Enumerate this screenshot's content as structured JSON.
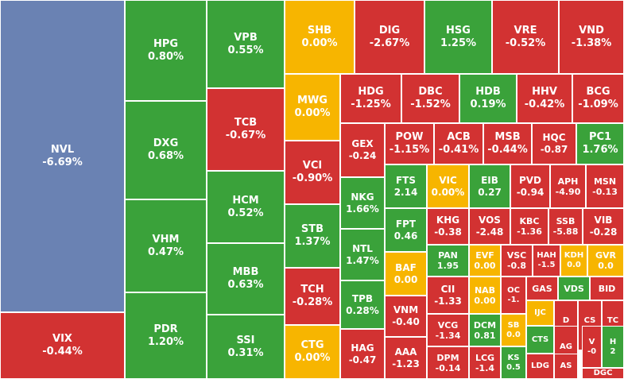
{
  "colors": {
    "up": "#3aa23a",
    "down": "#d23232",
    "unchanged": "#f7b500",
    "deep_down": "#6a82b3"
  },
  "tiles": [
    {
      "ticker": "NVL",
      "change": "-6.69%",
      "status": "deep_down"
    },
    {
      "ticker": "VIX",
      "change": "-0.44%",
      "status": "down"
    },
    {
      "ticker": "HPG",
      "change": "0.80%",
      "status": "up"
    },
    {
      "ticker": "DXG",
      "change": "0.68%",
      "status": "up"
    },
    {
      "ticker": "VHM",
      "change": "0.47%",
      "status": "up"
    },
    {
      "ticker": "PDR",
      "change": "1.20%",
      "status": "up"
    },
    {
      "ticker": "VPB",
      "change": "0.55%",
      "status": "up"
    },
    {
      "ticker": "TCB",
      "change": "-0.67%",
      "status": "down"
    },
    {
      "ticker": "HCM",
      "change": "0.52%",
      "status": "up"
    },
    {
      "ticker": "MBB",
      "change": "0.63%",
      "status": "up"
    },
    {
      "ticker": "SSI",
      "change": "0.31%",
      "status": "up"
    },
    {
      "ticker": "SHB",
      "change": "0.00%",
      "status": "unchanged"
    },
    {
      "ticker": "MWG",
      "change": "0.00%",
      "status": "unchanged"
    },
    {
      "ticker": "VCI",
      "change": "-0.90%",
      "status": "down"
    },
    {
      "ticker": "STB",
      "change": "1.37%",
      "status": "up"
    },
    {
      "ticker": "TCH",
      "change": "-0.28%",
      "status": "down"
    },
    {
      "ticker": "CTG",
      "change": "0.00%",
      "status": "unchanged"
    },
    {
      "ticker": "DIG",
      "change": "-2.67%",
      "status": "down"
    },
    {
      "ticker": "HSG",
      "change": "1.25%",
      "status": "up"
    },
    {
      "ticker": "VRE",
      "change": "-0.52%",
      "status": "down"
    },
    {
      "ticker": "VND",
      "change": "-1.38%",
      "status": "down"
    },
    {
      "ticker": "HDG",
      "change": "-1.25%",
      "status": "down"
    },
    {
      "ticker": "DBC",
      "change": "-1.52%",
      "status": "down"
    },
    {
      "ticker": "HDB",
      "change": "0.19%",
      "status": "up"
    },
    {
      "ticker": "HHV",
      "change": "-0.42%",
      "status": "down"
    },
    {
      "ticker": "BCG",
      "change": "-1.09%",
      "status": "down"
    },
    {
      "ticker": "GEX",
      "change": "-0.24",
      "status": "down"
    },
    {
      "ticker": "POW",
      "change": "-1.15%",
      "status": "down"
    },
    {
      "ticker": "ACB",
      "change": "-0.41%",
      "status": "down"
    },
    {
      "ticker": "MSB",
      "change": "-0.44%",
      "status": "down"
    },
    {
      "ticker": "HQC",
      "change": "-0.87",
      "status": "down"
    },
    {
      "ticker": "PC1",
      "change": "1.76%",
      "status": "up"
    },
    {
      "ticker": "NKG",
      "change": "1.66%",
      "status": "up"
    },
    {
      "ticker": "NTL",
      "change": "1.47%",
      "status": "up"
    },
    {
      "ticker": "TPB",
      "change": "0.28%",
      "status": "up"
    },
    {
      "ticker": "HAG",
      "change": "-0.47",
      "status": "down"
    },
    {
      "ticker": "FTS",
      "change": "2.14",
      "status": "up"
    },
    {
      "ticker": "FPT",
      "change": "0.46",
      "status": "up"
    },
    {
      "ticker": "BAF",
      "change": "0.00",
      "status": "unchanged"
    },
    {
      "ticker": "VNM",
      "change": "-0.40",
      "status": "down"
    },
    {
      "ticker": "AAA",
      "change": "-1.23",
      "status": "down"
    },
    {
      "ticker": "VIC",
      "change": "0.00%",
      "status": "unchanged"
    },
    {
      "ticker": "EIB",
      "change": "0.27",
      "status": "up"
    },
    {
      "ticker": "PVD",
      "change": "-0.94",
      "status": "down"
    },
    {
      "ticker": "APH",
      "change": "-4.90",
      "status": "down"
    },
    {
      "ticker": "MSN",
      "change": "-0.13",
      "status": "down"
    },
    {
      "ticker": "KHG",
      "change": "-0.38",
      "status": "down"
    },
    {
      "ticker": "VOS",
      "change": "-2.48",
      "status": "down"
    },
    {
      "ticker": "KBC",
      "change": "-1.36",
      "status": "down"
    },
    {
      "ticker": "SSB",
      "change": "-5.88",
      "status": "down"
    },
    {
      "ticker": "VIB",
      "change": "-0.28",
      "status": "down"
    },
    {
      "ticker": "PAN",
      "change": "1.95",
      "status": "up"
    },
    {
      "ticker": "EVF",
      "change": "0.00",
      "status": "unchanged"
    },
    {
      "ticker": "VSC",
      "change": "-0.8",
      "status": "down"
    },
    {
      "ticker": "HAH",
      "change": "-1.5",
      "status": "down"
    },
    {
      "ticker": "KDH",
      "change": "0.0",
      "status": "unchanged"
    },
    {
      "ticker": "GVR",
      "change": "0.0",
      "status": "unchanged"
    },
    {
      "ticker": "CII",
      "change": "-1.33",
      "status": "down"
    },
    {
      "ticker": "NAB",
      "change": "0.00",
      "status": "unchanged"
    },
    {
      "ticker": "OC",
      "change": "-1.",
      "status": "down"
    },
    {
      "ticker": "GAS",
      "change": "",
      "status": "down"
    },
    {
      "ticker": "VDS",
      "change": "",
      "status": "up"
    },
    {
      "ticker": "BID",
      "change": "",
      "status": "down"
    },
    {
      "ticker": "VCG",
      "change": "-1.34",
      "status": "down"
    },
    {
      "ticker": "DCM",
      "change": "0.81",
      "status": "up"
    },
    {
      "ticker": "SB",
      "change": "0.0",
      "status": "unchanged"
    },
    {
      "ticker": "IJC",
      "change": "",
      "status": "unchanged"
    },
    {
      "ticker": "D",
      "change": "-1.",
      "status": "down"
    },
    {
      "ticker": "CS",
      "change": "-0.",
      "status": "down"
    },
    {
      "ticker": "TC",
      "change": "-0.",
      "status": "down"
    },
    {
      "ticker": "DPM",
      "change": "-0.14",
      "status": "down"
    },
    {
      "ticker": "LCG",
      "change": "-1.4",
      "status": "down"
    },
    {
      "ticker": "KS",
      "change": "0.5",
      "status": "up"
    },
    {
      "ticker": "CTS",
      "change": "",
      "status": "up"
    },
    {
      "ticker": "LDG",
      "change": "",
      "status": "down"
    },
    {
      "ticker": "AG",
      "change": "",
      "status": "down"
    },
    {
      "ticker": "V",
      "change": "-0",
      "status": "down"
    },
    {
      "ticker": "H",
      "change": "2",
      "status": "up"
    },
    {
      "ticker": "AS",
      "change": "",
      "status": "down"
    },
    {
      "ticker": "DGC",
      "change": "",
      "status": "down"
    }
  ]
}
